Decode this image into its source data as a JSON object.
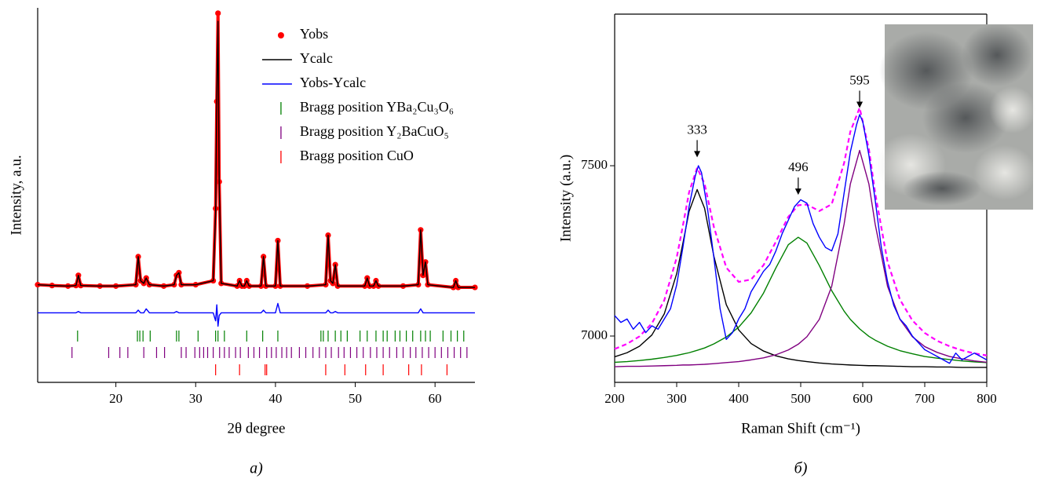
{
  "chart_data": [
    {
      "type": "line",
      "xlabel": "2θ degree",
      "ylabel": "Intensity, a.u.",
      "caption": "а)",
      "xlim": [
        10.2,
        65
      ],
      "xticks": [
        20,
        30,
        40,
        50,
        60
      ],
      "ylim": [
        -35,
        105
      ],
      "legend": "upper right",
      "x": [
        10.2,
        12,
        14,
        15.0,
        15.3,
        15.6,
        18,
        20,
        22.5,
        22.8,
        23.1,
        23.5,
        23.8,
        24.2,
        26,
        27.3,
        27.6,
        27.9,
        28.2,
        30,
        32.2,
        32.5,
        32.65,
        32.8,
        32.95,
        33.2,
        35.2,
        35.5,
        35.8,
        36.1,
        36.4,
        36.7,
        38.2,
        38.5,
        38.8,
        40.0,
        40.3,
        40.6,
        44,
        46.3,
        46.6,
        46.9,
        47.2,
        47.5,
        47.8,
        51.2,
        51.5,
        51.8,
        52.3,
        52.6,
        52.9,
        56,
        57.9,
        58.2,
        58.5,
        58.8,
        59.1,
        62.3,
        62.6,
        62.9,
        65
      ],
      "series": [
        {
          "name": "Yobs",
          "color": "#ff0000",
          "marker": "circle",
          "values": [
            1.5,
            1.2,
            1,
            1.2,
            5,
            1.2,
            1,
            1,
            1.5,
            12,
            3,
            2,
            4,
            1.5,
            1,
            1.5,
            5,
            6,
            1.5,
            1.5,
            3,
            30,
            70,
            103,
            40,
            2,
            1,
            3,
            1,
            1,
            3,
            1,
            1,
            12,
            1,
            1,
            18,
            1,
            1,
            1.5,
            20,
            3,
            2,
            9,
            1,
            1,
            4,
            1,
            1,
            3,
            1,
            1,
            1.5,
            22,
            5,
            10,
            1.5,
            0.5,
            3,
            0.5,
            0.5
          ]
        },
        {
          "name": "Ycalc",
          "color": "#000000",
          "values": [
            1.5,
            1.2,
            1,
            1.2,
            5,
            1.2,
            1,
            1,
            1.5,
            12,
            3,
            2,
            4,
            1.5,
            1,
            1.5,
            5,
            6,
            1.5,
            1.5,
            3,
            28,
            72,
            100,
            40,
            2,
            1,
            3,
            1,
            1,
            3,
            1,
            1,
            12,
            1,
            1,
            18,
            1,
            1,
            1.5,
            20,
            3,
            2,
            9,
            1,
            1,
            4,
            1,
            1,
            3,
            1,
            1,
            1.5,
            22,
            5,
            10,
            1.5,
            0.5,
            3,
            0.5,
            0.5
          ]
        },
        {
          "name": "Yobs-Ycalc",
          "color": "#0000ff",
          "values": [
            -9,
            -9,
            -9,
            -9,
            -8.5,
            -9,
            -9,
            -9,
            -9,
            -8,
            -9,
            -9,
            -7.5,
            -9,
            -9,
            -9,
            -8.5,
            -9,
            -9,
            -9,
            -9,
            -12,
            -6,
            -14,
            -10,
            -9,
            -9,
            -9,
            -9,
            -9,
            -9,
            -9,
            -9,
            -8,
            -9,
            -9,
            -5.5,
            -9,
            -9,
            -9,
            -8,
            -9,
            -9,
            -8.5,
            -9,
            -9,
            -9,
            -9,
            -9,
            -9,
            -9,
            -9,
            -9,
            -7.5,
            -9,
            -9,
            -9,
            -9,
            -9,
            -9,
            -9
          ]
        },
        {
          "name": "Bragg position YBa₂Cu₃O₆",
          "color": "#008000",
          "x": [
            15.2,
            22.7,
            23.0,
            23.4,
            24.3,
            27.6,
            27.9,
            30.3,
            32.5,
            32.8,
            33.6,
            36.4,
            38.4,
            40.3,
            45.7,
            46.0,
            46.6,
            47.5,
            48.2,
            49.0,
            50.6,
            51.5,
            52.6,
            53.5,
            54.0,
            55.0,
            55.6,
            56.4,
            57.2,
            58.2,
            58.8,
            59.4,
            61.0,
            62.0,
            62.8,
            63.6
          ]
        },
        {
          "name": "Bragg position Y₂BaCuO₅",
          "color": "#800080",
          "x": [
            14.5,
            19.1,
            20.5,
            21.5,
            23.5,
            25.1,
            26.1,
            28.2,
            28.8,
            29.9,
            30.5,
            31.0,
            31.5,
            32.2,
            33.0,
            33.6,
            34.2,
            35.0,
            35.6,
            36.6,
            37.3,
            38.0,
            38.9,
            39.5,
            40.1,
            40.8,
            41.4,
            42.0,
            43.0,
            43.8,
            44.7,
            45.5,
            46.3,
            47.0,
            47.9,
            48.6,
            49.4,
            50.2,
            51.0,
            51.9,
            52.7,
            53.5,
            54.3,
            55.2,
            56.0,
            56.9,
            57.6,
            58.4,
            59.2,
            60.0,
            60.8,
            61.6,
            62.4,
            63.2,
            64.0
          ]
        },
        {
          "name": "Bragg position CuO",
          "color": "#ff0000",
          "x": [
            32.5,
            35.5,
            38.7,
            38.9,
            46.3,
            48.7,
            51.3,
            53.5,
            56.7,
            58.3,
            61.5
          ]
        }
      ]
    },
    {
      "type": "line",
      "xlabel": "Raman Shift (cm⁻¹)",
      "ylabel": "Intensity (a.u.)",
      "caption": "б)",
      "xlim": [
        200,
        800
      ],
      "xticks": [
        200,
        300,
        400,
        500,
        600,
        700,
        800
      ],
      "ylim": [
        6864,
        7945
      ],
      "yticks": [
        7000,
        7500
      ],
      "annotations": [
        {
          "x": 333,
          "y": 7520
        },
        {
          "x": 496,
          "y": 7410
        },
        {
          "x": 595,
          "y": 7665
        }
      ],
      "series": [
        {
          "color": "#ff00ff",
          "dash": true,
          "x": [
            200,
            220,
            240,
            260,
            280,
            300,
            310,
            320,
            333,
            345,
            360,
            380,
            400,
            420,
            440,
            460,
            480,
            496,
            510,
            530,
            550,
            570,
            580,
            595,
            610,
            620,
            640,
            660,
            680,
            700,
            720,
            740,
            760,
            780,
            800
          ],
          "values": [
            6962,
            6977,
            6999,
            7037,
            7105,
            7230,
            7324,
            7422,
            7494,
            7447,
            7320,
            7201,
            7159,
            7166,
            7208,
            7277,
            7350,
            7384,
            7386,
            7367,
            7387,
            7508,
            7600,
            7670,
            7548,
            7420,
            7218,
            7107,
            7046,
            7009,
            6986,
            6970,
            6958,
            6949,
            6943
          ]
        },
        {
          "color": "#000000",
          "x": [
            200,
            220,
            240,
            260,
            280,
            300,
            310,
            320,
            333,
            345,
            360,
            380,
            400,
            420,
            440,
            460,
            480,
            496,
            510,
            530,
            550,
            570,
            580,
            595,
            610,
            620,
            640,
            660,
            680,
            700,
            720,
            740,
            760,
            780,
            800
          ],
          "values": [
            6939,
            6951,
            6970,
            7003,
            7065,
            7183,
            7272,
            7366,
            7430,
            7375,
            7234,
            7092,
            7018,
            6978,
            6956,
            6942,
            6933,
            6928,
            6925,
            6921,
            6918,
            6916,
            6915,
            6914,
            6913,
            6913,
            6912,
            6911,
            6910,
            6910,
            6909,
            6909,
            6908,
            6908,
            6908
          ]
        },
        {
          "color": "#008000",
          "x": [
            200,
            220,
            240,
            260,
            280,
            300,
            310,
            320,
            333,
            345,
            360,
            380,
            400,
            420,
            440,
            460,
            480,
            496,
            510,
            530,
            550,
            570,
            580,
            595,
            610,
            620,
            640,
            660,
            680,
            700,
            720,
            740,
            760,
            780,
            800
          ],
          "values": [
            6923,
            6925,
            6928,
            6932,
            6937,
            6943,
            6947,
            6951,
            6958,
            6965,
            6977,
            6997,
            7026,
            7068,
            7126,
            7200,
            7268,
            7290,
            7273,
            7207,
            7133,
            7073,
            7049,
            7021,
            6999,
            6988,
            6970,
            6957,
            6948,
            6940,
            6935,
            6931,
            6927,
            6924,
            6922
          ]
        },
        {
          "color": "#800080",
          "x": [
            200,
            220,
            240,
            260,
            280,
            300,
            310,
            320,
            333,
            345,
            360,
            380,
            400,
            420,
            440,
            460,
            480,
            496,
            510,
            530,
            550,
            570,
            580,
            595,
            610,
            620,
            640,
            660,
            680,
            700,
            720,
            740,
            760,
            780,
            800
          ],
          "values": [
            6910,
            6911,
            6911,
            6912,
            6913,
            6914,
            6915,
            6915,
            6916,
            6917,
            6919,
            6922,
            6925,
            6930,
            6936,
            6945,
            6959,
            6976,
            6998,
            7049,
            7146,
            7329,
            7446,
            7545,
            7446,
            7329,
            7146,
            7049,
            6998,
            6969,
            6952,
            6940,
            6933,
            6927,
            6923
          ]
        },
        {
          "color": "#0000ff",
          "x": [
            200,
            210,
            220,
            230,
            240,
            250,
            260,
            270,
            280,
            290,
            300,
            310,
            320,
            330,
            335,
            340,
            350,
            360,
            370,
            380,
            390,
            400,
            410,
            420,
            430,
            440,
            450,
            460,
            470,
            480,
            490,
            500,
            510,
            520,
            530,
            540,
            550,
            560,
            570,
            580,
            590,
            595,
            600,
            610,
            620,
            630,
            640,
            650,
            660,
            670,
            680,
            690,
            700,
            710,
            720,
            730,
            740,
            750,
            760,
            770,
            780,
            790,
            800
          ],
          "values": [
            7060,
            7040,
            7050,
            7020,
            7040,
            7010,
            7030,
            7020,
            7050,
            7080,
            7150,
            7260,
            7380,
            7470,
            7500,
            7480,
            7370,
            7230,
            7080,
            6990,
            7010,
            7050,
            7080,
            7130,
            7160,
            7190,
            7210,
            7250,
            7300,
            7340,
            7380,
            7400,
            7390,
            7330,
            7290,
            7260,
            7250,
            7300,
            7420,
            7540,
            7620,
            7650,
            7630,
            7530,
            7400,
            7260,
            7160,
            7090,
            7050,
            7030,
            7000,
            6980,
            6960,
            6950,
            6940,
            6930,
            6920,
            6950,
            6930,
            6940,
            6950,
            6940,
            6930
          ]
        }
      ]
    }
  ]
}
